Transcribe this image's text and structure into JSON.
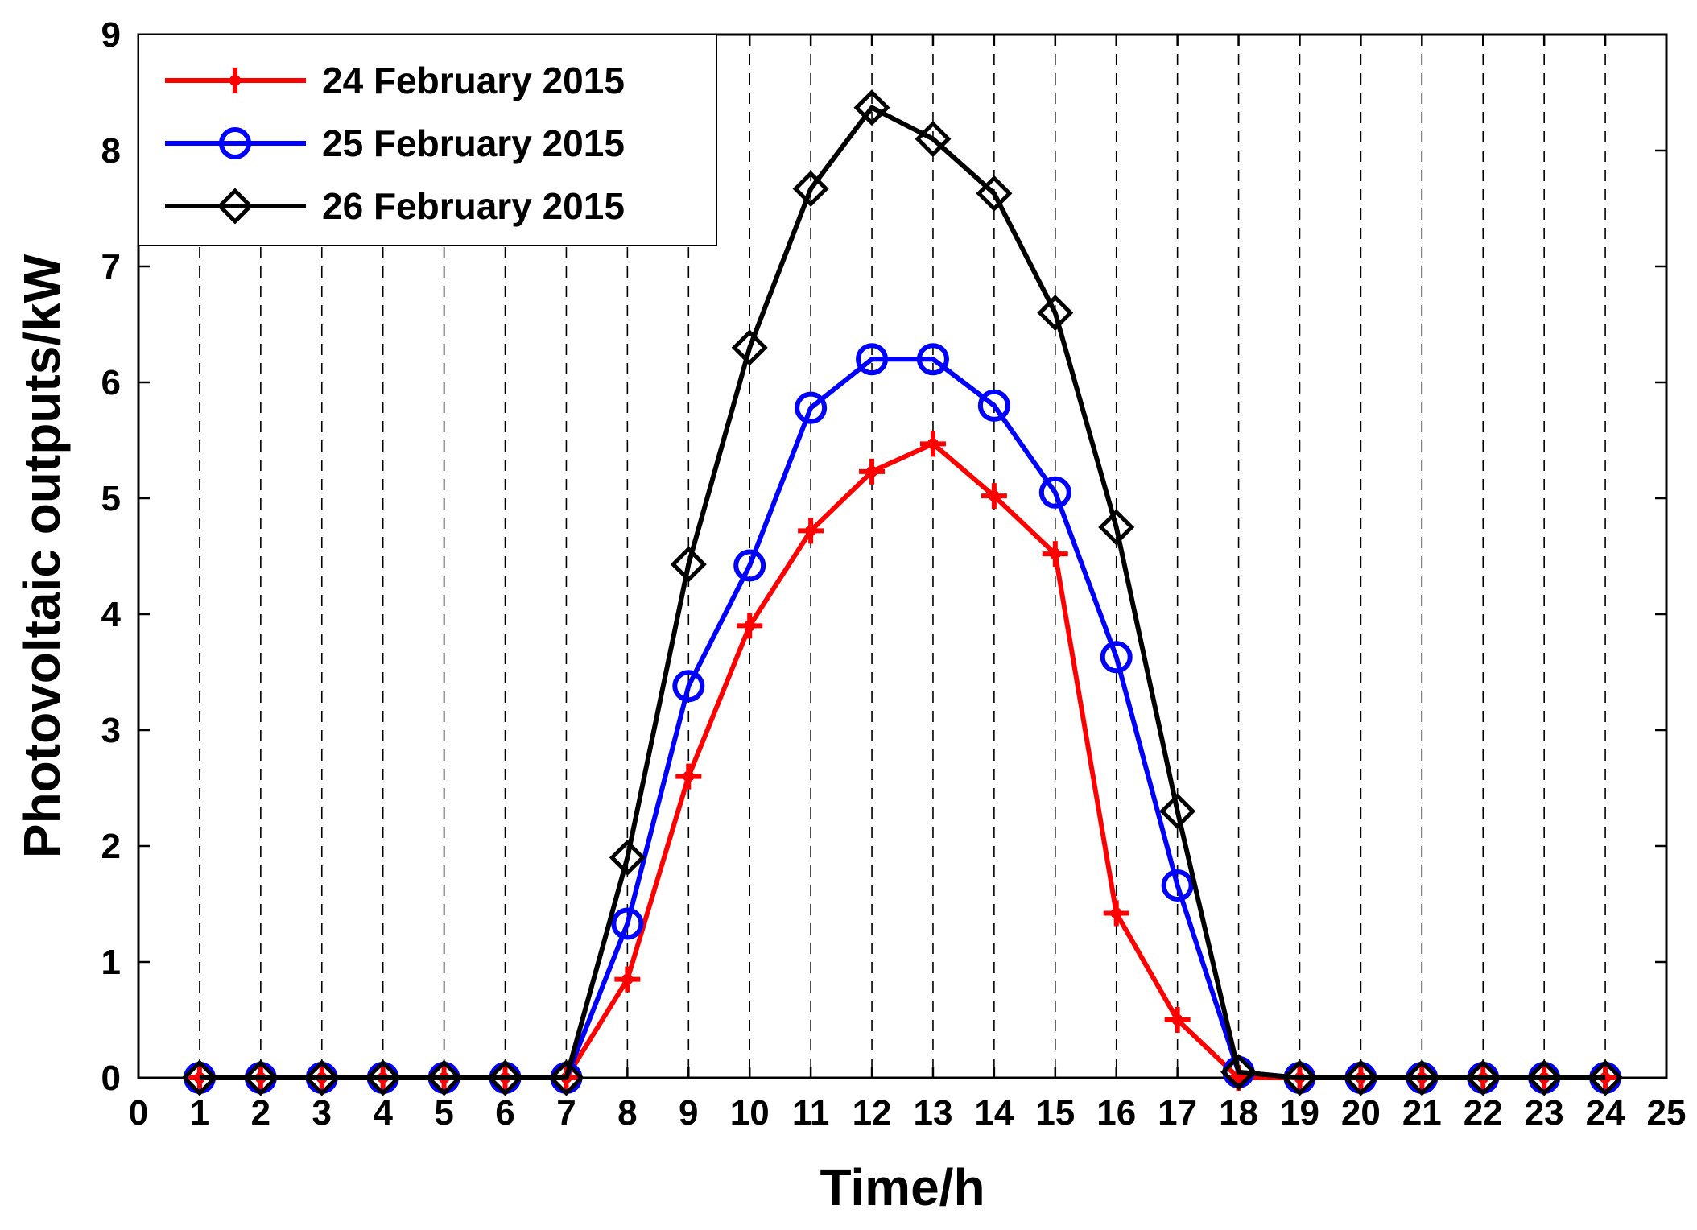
{
  "chart_data": {
    "type": "line",
    "xlabel": "Time/h",
    "ylabel": "Photovoltaic outputs/kW",
    "xlim": [
      0,
      25
    ],
    "ylim": [
      0,
      9
    ],
    "x_ticks": [
      "0",
      "1",
      "2",
      "3",
      "4",
      "5",
      "6",
      "7",
      "8",
      "9",
      "10",
      "11",
      "12",
      "13",
      "14",
      "15",
      "16",
      "17",
      "18",
      "19",
      "20",
      "21",
      "22",
      "23",
      "24",
      "25"
    ],
    "y_ticks": [
      "0",
      "1",
      "2",
      "3",
      "4",
      "5",
      "6",
      "7",
      "8",
      "9"
    ],
    "grid": "vertical dashed",
    "legend_position": "top-left",
    "x": [
      1,
      2,
      3,
      4,
      5,
      6,
      7,
      8,
      9,
      10,
      11,
      12,
      13,
      14,
      15,
      16,
      17,
      18,
      19,
      20,
      21,
      22,
      23,
      24
    ],
    "series": [
      {
        "name": "24 February 2015",
        "color": "#ff0000",
        "marker": "plus",
        "values": [
          0,
          0,
          0,
          0,
          0,
          0,
          0,
          0.85,
          2.6,
          3.9,
          4.72,
          5.23,
          5.47,
          5.02,
          4.52,
          1.42,
          0.5,
          0,
          0,
          0,
          0,
          0,
          0,
          0
        ]
      },
      {
        "name": "25 February 2015",
        "color": "#0000ff",
        "marker": "circle",
        "values": [
          0,
          0,
          0,
          0,
          0,
          0,
          0,
          1.33,
          3.38,
          4.42,
          5.78,
          6.2,
          6.2,
          5.8,
          5.05,
          3.63,
          1.66,
          0.05,
          0,
          0,
          0,
          0,
          0,
          0
        ]
      },
      {
        "name": "26 February 2015",
        "color": "#000000",
        "marker": "diamond",
        "values": [
          0,
          0,
          0,
          0,
          0,
          0,
          0,
          1.9,
          4.43,
          6.3,
          7.67,
          8.37,
          8.1,
          7.63,
          6.6,
          4.75,
          2.3,
          0.05,
          0,
          0,
          0,
          0,
          0,
          0
        ]
      }
    ]
  }
}
